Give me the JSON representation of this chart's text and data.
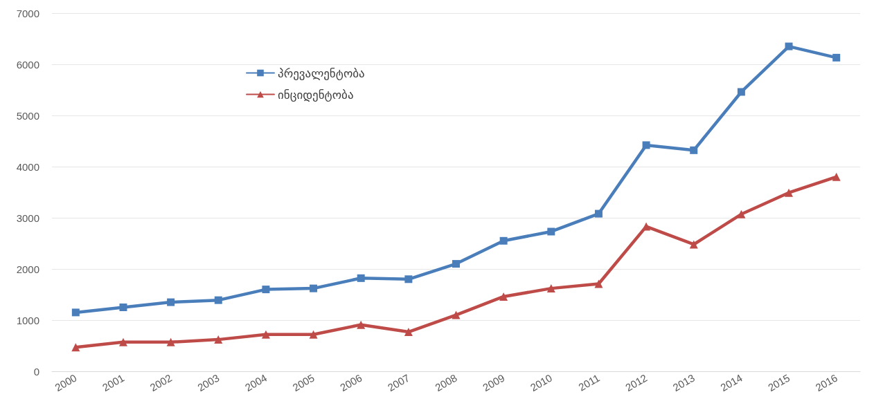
{
  "chart_data": {
    "type": "line",
    "categories": [
      "2000",
      "2001",
      "2002",
      "2003",
      "2004",
      "2005",
      "2006",
      "2007",
      "2008",
      "2009",
      "2010",
      "2011",
      "2012",
      "2013",
      "2014",
      "2015",
      "2016"
    ],
    "series": [
      {
        "name": "პრევალენტობა",
        "color": "#4a7ebb",
        "marker": "square",
        "values": [
          1150,
          1250,
          1350,
          1390,
          1600,
          1620,
          1820,
          1800,
          2100,
          2550,
          2730,
          3080,
          4420,
          4320,
          5460,
          6350,
          6130
        ]
      },
      {
        "name": "ინციდენტობა",
        "color": "#be4b48",
        "marker": "triangle",
        "values": [
          470,
          570,
          570,
          620,
          720,
          720,
          910,
          770,
          1100,
          1460,
          1620,
          1710,
          2830,
          2480,
          3070,
          3490,
          3800
        ]
      }
    ],
    "ylim": [
      0,
      7000
    ],
    "yticks": [
      0,
      1000,
      2000,
      3000,
      4000,
      5000,
      6000,
      7000
    ],
    "grid": "y",
    "legend": "top left"
  }
}
